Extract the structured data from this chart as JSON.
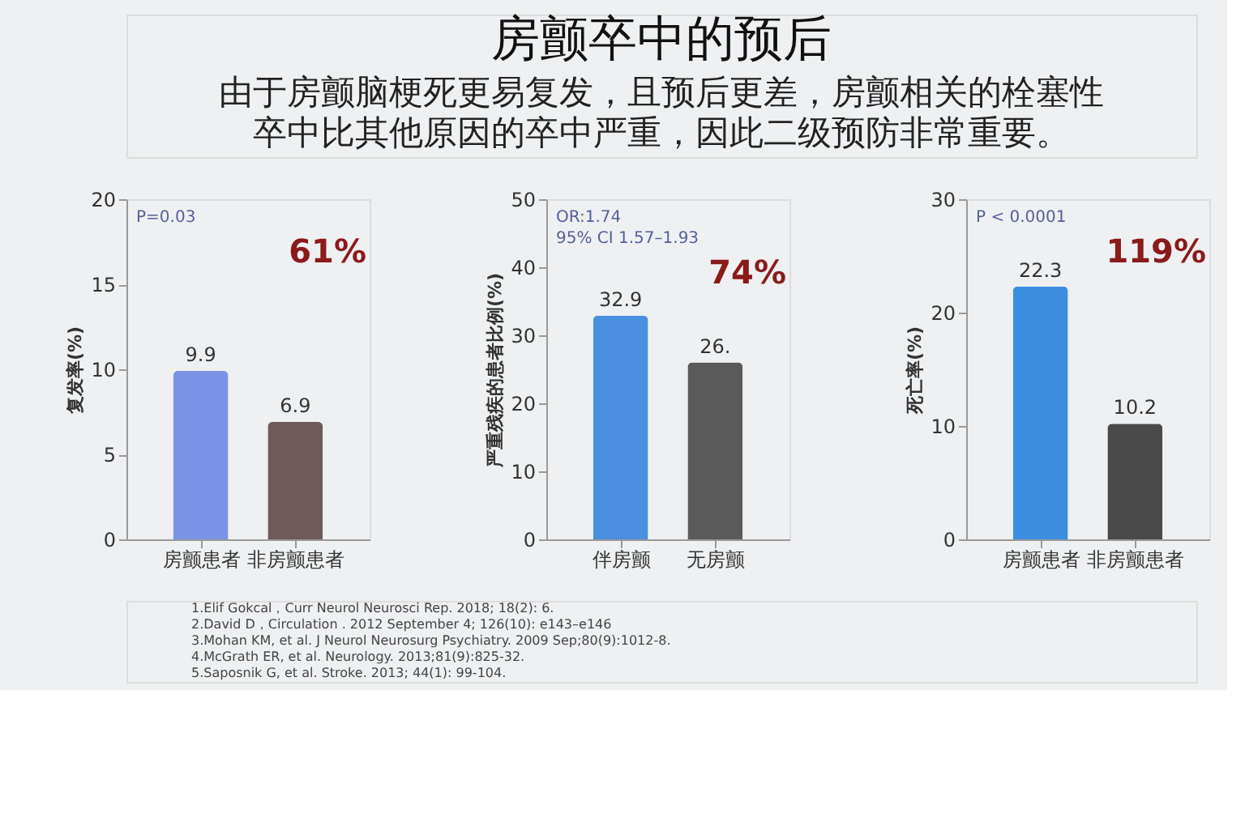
{
  "chart_data": [
    {
      "type": "other",
      "title": "房颤卒中的预后",
      "subtitle": "由于房颤脑梗死更易复发，且预后更差，房颤相关的栓塞性卒中比其他原因的卒中严重，因此二级预防非常重要。"
    },
    {
      "type": "bar",
      "ylabel": "复发率(%)",
      "categories": [
        "房颤患者",
        "非房颤患者"
      ],
      "values": [
        9.9,
        6.9
      ],
      "colors": [
        "#7b93e6",
        "#6e5a5a"
      ],
      "ylim": [
        0,
        20
      ],
      "yticks": [
        0,
        5,
        10,
        15,
        20
      ],
      "data_labels": true,
      "annotations": [
        "P=0.03",
        "61%"
      ]
    },
    {
      "type": "bar",
      "ylabel": "严重残疾的患者比例(%)",
      "categories": [
        "伴房颤",
        "无房颤"
      ],
      "values": [
        32.9,
        26
      ],
      "colors": [
        "#4a8fe0",
        "#5a5a5a"
      ],
      "ylim": [
        0,
        50
      ],
      "yticks": [
        0,
        10,
        20,
        30,
        40,
        50
      ],
      "value_labels": [
        "32.9",
        "26."
      ],
      "annotations": [
        "OR:1.74",
        "95% CI 1.57–1.93",
        "74%"
      ]
    },
    {
      "type": "bar",
      "ylabel": "死亡率(%)",
      "categories": [
        "房颤患者",
        "非房颤患者"
      ],
      "values": [
        22.3,
        10.2
      ],
      "colors": [
        "#3b8ee0",
        "#4a4a4a"
      ],
      "ylim": [
        0,
        30
      ],
      "yticks": [
        0,
        10,
        20,
        30
      ],
      "data_labels": true,
      "annotations": [
        "P < 0.0001",
        "119%"
      ]
    },
    {
      "type": "other",
      "annotations": [
        "1.Elif Gokcal，Curr Neurol Neurosci Rep. 2018; 18(2): 6.",
        "2.David D，Circulation . 2012 September 4; 126(10): e143–e146",
        "3.Mohan KM, et al. J Neurol Neurosurg Psychiatry. 2009 Sep;80(9):1012-8.",
        "4.McGrath ER, et al. Neurology. 2013;81(9):825-32.",
        "5.Saposnik G, et al. Stroke. 2013; 44(1): 99-104."
      ]
    }
  ]
}
